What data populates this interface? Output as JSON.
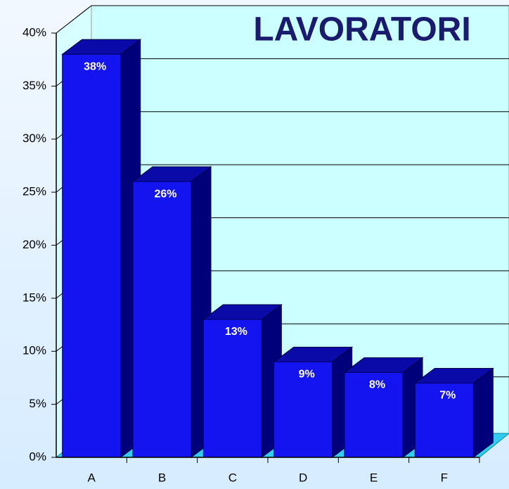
{
  "chart_data": {
    "type": "bar3d",
    "title": "LAVORATORI",
    "categories": [
      "A",
      "B",
      "C",
      "D",
      "E",
      "F"
    ],
    "values": [
      38,
      26,
      13,
      9,
      8,
      7
    ],
    "value_labels": [
      "38%",
      "26%",
      "13%",
      "9%",
      "8%",
      "7%"
    ],
    "color": "#1414f0",
    "ylim": [
      0,
      40
    ],
    "yticks": [
      {
        "value": 0,
        "label": "0%"
      },
      {
        "value": 5,
        "label": "5%"
      },
      {
        "value": 10,
        "label": "10%"
      },
      {
        "value": 15,
        "label": "15%"
      },
      {
        "value": 20,
        "label": "20%"
      },
      {
        "value": 25,
        "label": "25%"
      },
      {
        "value": 30,
        "label": "30%"
      },
      {
        "value": 35,
        "label": "35%"
      },
      {
        "value": 40,
        "label": "40%"
      }
    ],
    "grid": true
  }
}
